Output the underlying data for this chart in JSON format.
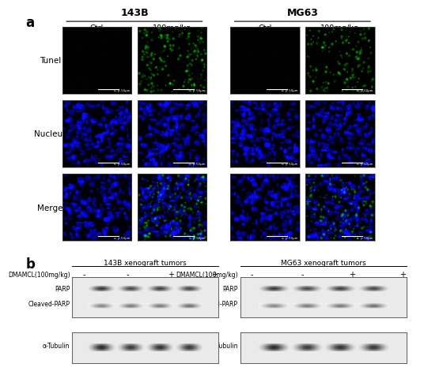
{
  "panel_a_label": "a",
  "panel_b_label": "b",
  "group1_label": "143B",
  "group2_label": "MG63",
  "col_labels": [
    "Ctrl",
    "100mg/kg"
  ],
  "row_labels": [
    "Tunel",
    "Nucleus",
    "Merge"
  ],
  "scale_bar_text": "x, y: 50μm",
  "wb_title1": "143B xenograft tumors",
  "wb_title2": "MG63 xenograft tumors",
  "wb_treatment_label": "DMAMCL(100mg/kg)",
  "wb_treatment_values": [
    "-",
    "-",
    "+",
    "+"
  ],
  "wb_bands": [
    "PARP",
    "Cleaved-PARP",
    "α-Tubulin"
  ],
  "fig_bg": "#FFFFFF"
}
